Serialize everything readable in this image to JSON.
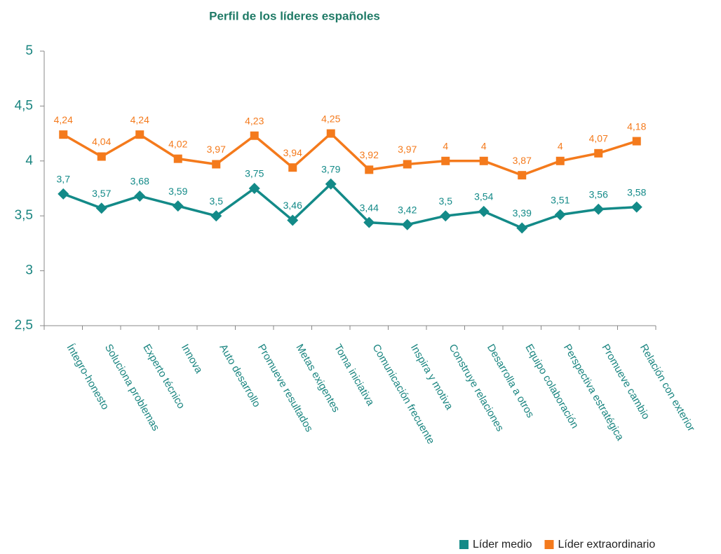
{
  "chart_data": {
    "type": "line",
    "title": "Perfil de los líderes españoles",
    "categories": [
      "Íntegro-honesto",
      "Soluciona problemas",
      "Experto técnico",
      "Innova",
      "Auto desarrollo",
      "Promueve resultados",
      "Metas exigentes",
      "Toma iniciativa",
      "Comunicación frecuente",
      "Inspira y motiva",
      "Construye relaciones",
      "Desarrolla a otros",
      "Equipo colaboración",
      "Perspectiva estratégica",
      "Promueve cambio",
      "Relación con exterior"
    ],
    "series": [
      {
        "name": "Líder medio",
        "color": "#138a88",
        "marker": "diamond",
        "values": [
          3.7,
          3.57,
          3.68,
          3.59,
          3.5,
          3.75,
          3.46,
          3.79,
          3.44,
          3.42,
          3.5,
          3.54,
          3.39,
          3.51,
          3.56,
          3.58
        ],
        "value_labels": [
          "3,7",
          "3,57",
          "3,68",
          "3,59",
          "3,5",
          "3,75",
          "3,46",
          "3,79",
          "3,44",
          "3,42",
          "3,5",
          "3,54",
          "3,39",
          "3,51",
          "3,56",
          "3,58"
        ]
      },
      {
        "name": "Líder extraordinario",
        "color": "#f47a1c",
        "marker": "square",
        "values": [
          4.24,
          4.04,
          4.24,
          4.02,
          3.97,
          4.23,
          3.94,
          4.25,
          3.92,
          3.97,
          4,
          4,
          3.87,
          4,
          4.07,
          4.18
        ],
        "value_labels": [
          "4,24",
          "4,04",
          "4,24",
          "4,02",
          "3,97",
          "4,23",
          "3,94",
          "4,25",
          "3,92",
          "3,97",
          "4",
          "4",
          "3,87",
          "4",
          "4,07",
          "4,18"
        ]
      }
    ],
    "ylim": [
      2.5,
      5
    ],
    "yticks": [
      {
        "value": 2.5,
        "label": "2,5"
      },
      3,
      {
        "value": 3.5,
        "label": "3,5"
      },
      4,
      {
        "value": 4.5,
        "label": "4,5"
      },
      5
    ],
    "grid": false,
    "legend": "bottom-right"
  }
}
